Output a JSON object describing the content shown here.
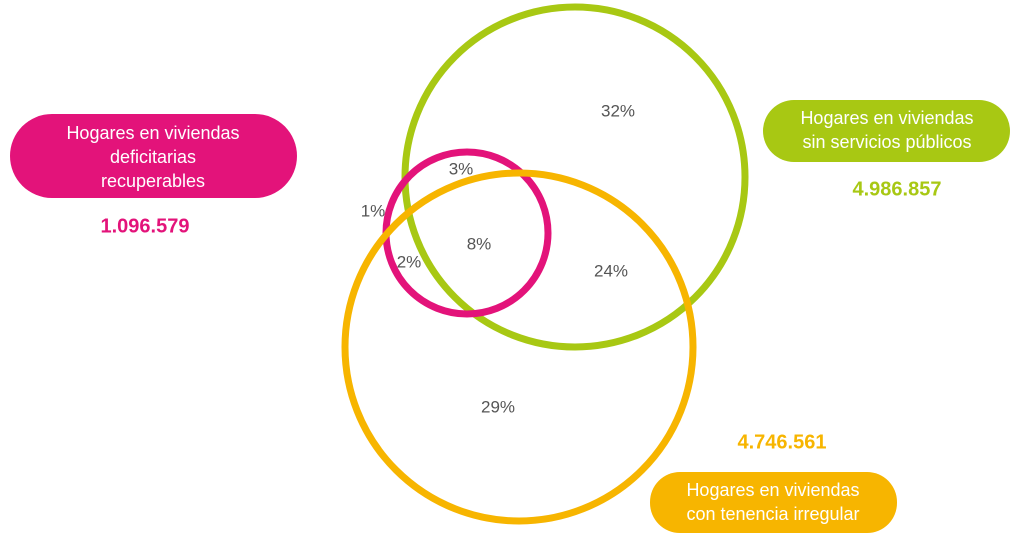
{
  "sets": [
    {
      "label_lines": [
        "Hogares en viviendas",
        "deficitarias",
        "recuperables"
      ],
      "count": "1.096.579"
    },
    {
      "label_lines": [
        "Hogares en viviendas",
        "sin servicios públicos"
      ],
      "count": "4.986.857"
    },
    {
      "label_lines": [
        "Hogares en viviendas",
        "con tenencia irregular"
      ],
      "count": "4.746.561"
    }
  ],
  "regions": [
    "32%",
    "3%",
    "1%",
    "8%",
    "2%",
    "24%",
    "29%"
  ]
}
